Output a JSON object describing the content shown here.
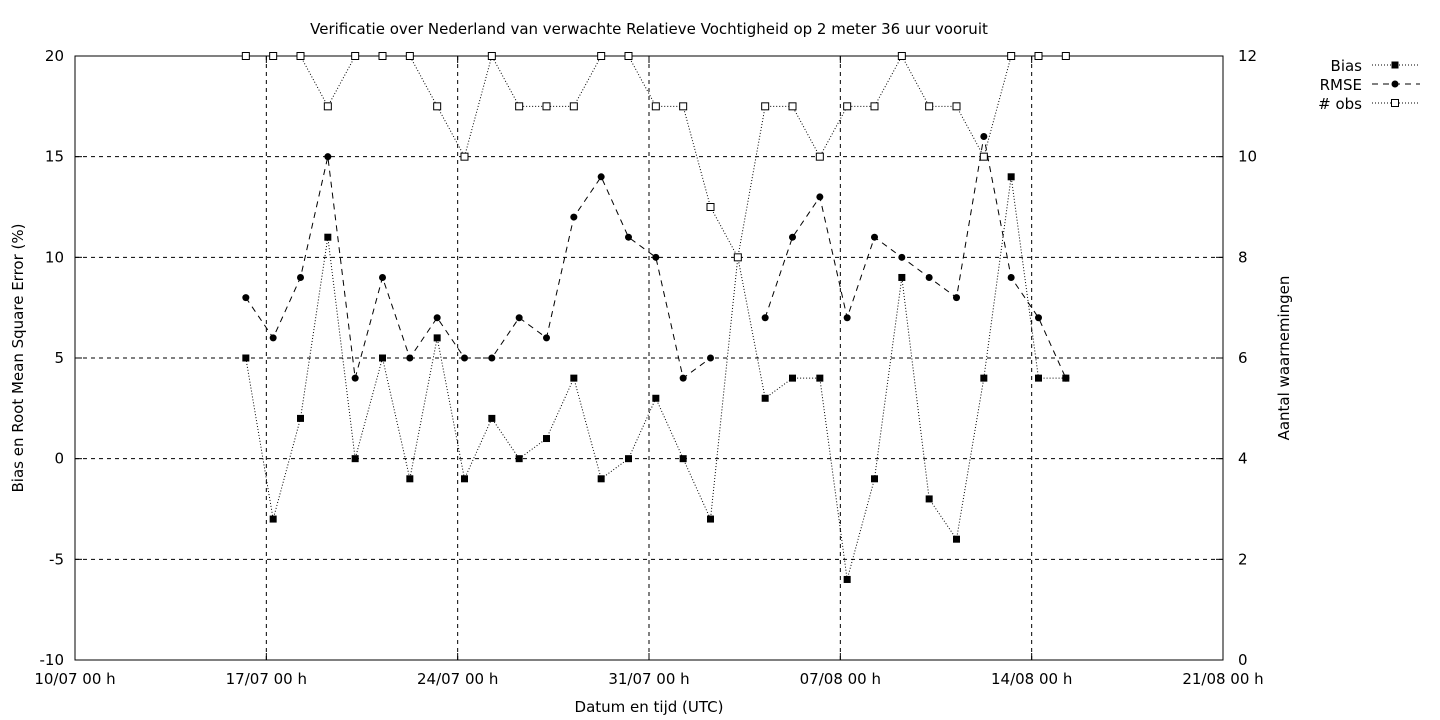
{
  "chart_data": {
    "type": "line",
    "title": "Verificatie over Nederland van verwachte Relatieve Vochtigheid op 2 meter 36 uur vooruit",
    "xlabel": "Datum en tijd (UTC)",
    "ylabel": "Bias en Root Mean Square Error (%)",
    "y2label": "Aantal waarnemingen",
    "xlim": [
      0,
      42
    ],
    "ylim": [
      -10,
      20
    ],
    "y2lim": [
      0,
      12
    ],
    "x_ticks": [
      {
        "x": 0,
        "label": "10/07 00 h"
      },
      {
        "x": 7,
        "label": "17/07 00 h"
      },
      {
        "x": 14,
        "label": "24/07 00 h"
      },
      {
        "x": 21,
        "label": "31/07 00 h"
      },
      {
        "x": 28,
        "label": "07/08 00 h"
      },
      {
        "x": 35,
        "label": "14/08 00 h"
      },
      {
        "x": 42,
        "label": "21/08 00 h"
      }
    ],
    "y_ticks": [
      "-10",
      "-5",
      "0",
      "5",
      "10",
      "15",
      "20"
    ],
    "y2_ticks": [
      "0",
      "2",
      "4",
      "6",
      "8",
      "10",
      "12"
    ],
    "grid": true,
    "legend_position": "top-right (outside plot)",
    "x": [
      6.25,
      7.25,
      8.25,
      9.25,
      10.25,
      11.25,
      12.25,
      13.25,
      14.25,
      15.25,
      16.25,
      17.25,
      18.25,
      19.25,
      20.25,
      21.25,
      22.25,
      23.25,
      24.25,
      25.25,
      26.25,
      27.25,
      28.25,
      29.25,
      30.25,
      31.25,
      32.25,
      33.25,
      34.25,
      35.25,
      36.25
    ],
    "series": [
      {
        "name": "Bias",
        "axis": "y",
        "style": "dotted",
        "marker": "filled-square",
        "values": [
          5,
          -3,
          2,
          11,
          0,
          5,
          -1,
          6,
          -1,
          2,
          0,
          1,
          4,
          -1,
          0,
          3,
          0,
          -3,
          10,
          3,
          4,
          4,
          -6,
          -1,
          9,
          -2,
          -4,
          4,
          14,
          4,
          4
        ]
      },
      {
        "name": "RMSE",
        "axis": "y",
        "style": "dashed",
        "marker": "filled-circle",
        "values": [
          8,
          6,
          9,
          15,
          4,
          9,
          5,
          7,
          5,
          5,
          7,
          6,
          12,
          14,
          11,
          10,
          4,
          5,
          null,
          7,
          11,
          13,
          7,
          11,
          10,
          9,
          8,
          16,
          9,
          7,
          4
        ]
      },
      {
        "name": "# obs",
        "axis": "y2",
        "style": "dotted",
        "marker": "open-square",
        "values": [
          12,
          12,
          12,
          11,
          12,
          12,
          12,
          11,
          10,
          12,
          11,
          11,
          11,
          12,
          12,
          11,
          11,
          9,
          8,
          11,
          11,
          10,
          11,
          11,
          12,
          11,
          11,
          10,
          12,
          12,
          12
        ]
      }
    ]
  }
}
